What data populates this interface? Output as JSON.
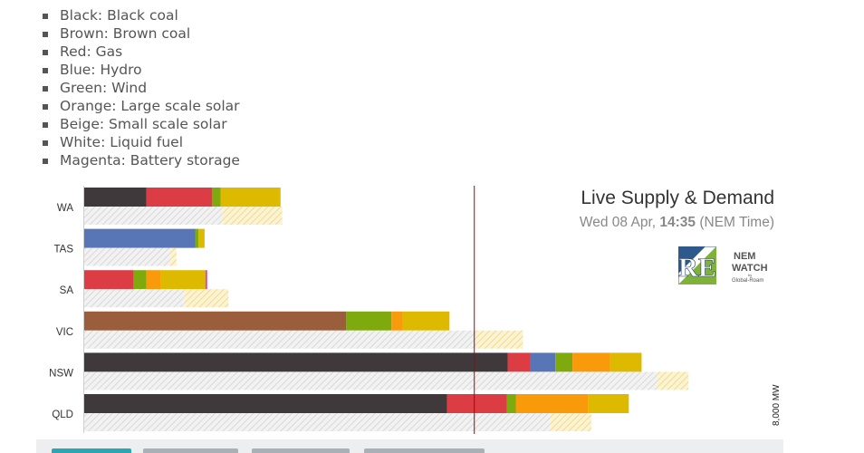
{
  "legend": [
    "Black: Black coal",
    "Brown: Brown coal",
    "Red: Gas",
    "Blue: Hydro",
    "Green: Wind",
    "Orange: Large scale solar",
    "Beige: Small scale solar",
    "White: Liquid fuel",
    "Magenta: Battery storage"
  ],
  "panel": {
    "title": "Live Supply & Demand",
    "time_prefix": "Wed 08 Apr, ",
    "time_value": "14:35",
    "time_suffix": " (NEM Time)",
    "re_logo": "RE",
    "nem_logo": [
      "NEM",
      "WATCH",
      "by",
      "Global-Roam"
    ]
  },
  "colors": {
    "black_coal": "#3f393c",
    "brown_coal": "#9b5e3c",
    "gas": "#dc3c44",
    "hydro": "#5876b5",
    "wind": "#7faa0e",
    "large_solar": "#f99a0a",
    "small_solar": "#ddba00",
    "liquid_fuel": "#ffffff",
    "battery": "#d83dc0",
    "demand_hatch": "#d8d8d8",
    "rooftop_hatch": "#efdc8e",
    "marker_line": "#b20000"
  },
  "chart_data": {
    "type": "bar",
    "orientation": "horizontal",
    "stacked": true,
    "unit": "MW",
    "xlim": [
      0,
      8000
    ],
    "axis_label": "8,000 MW",
    "categories": [
      "WA",
      "TAS",
      "SA",
      "VIC",
      "NSW",
      "QLD"
    ],
    "series": [
      {
        "name": "Black coal",
        "color_key": "black_coal",
        "values": [
          730,
          0,
          0,
          0,
          4960,
          4250
        ]
      },
      {
        "name": "Brown coal",
        "color_key": "brown_coal",
        "values": [
          0,
          0,
          0,
          3070,
          0,
          0
        ]
      },
      {
        "name": "Gas",
        "color_key": "gas",
        "values": [
          770,
          0,
          580,
          0,
          270,
          700
        ]
      },
      {
        "name": "Hydro",
        "color_key": "hydro",
        "values": [
          0,
          1300,
          0,
          0,
          290,
          0
        ]
      },
      {
        "name": "Wind",
        "color_key": "wind",
        "values": [
          100,
          40,
          150,
          530,
          200,
          110
        ]
      },
      {
        "name": "Large scale solar",
        "color_key": "large_solar",
        "values": [
          0,
          0,
          170,
          130,
          440,
          840
        ]
      },
      {
        "name": "Small scale solar",
        "color_key": "small_solar",
        "values": [
          700,
          70,
          520,
          550,
          370,
          480
        ]
      },
      {
        "name": "Liquid fuel",
        "color_key": "liquid_fuel",
        "values": [
          0,
          0,
          0,
          10,
          0,
          0
        ]
      },
      {
        "name": "Battery storage",
        "color_key": "battery",
        "values": [
          0,
          0,
          20,
          0,
          0,
          0
        ]
      }
    ],
    "demand": {
      "values": [
        1620,
        1010,
        1170,
        4590,
        6710,
        5460
      ],
      "rooftop_solar": [
        700,
        70,
        520,
        550,
        370,
        480
      ]
    },
    "marker_value": 4570
  }
}
